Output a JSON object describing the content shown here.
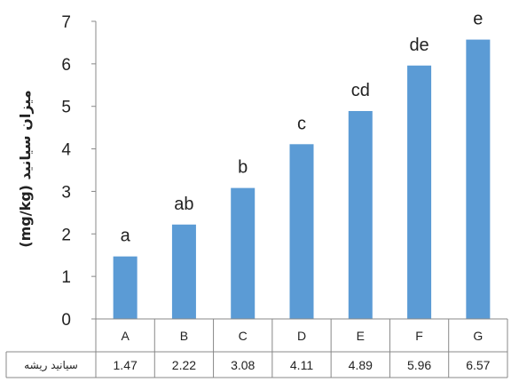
{
  "chart_data": {
    "type": "bar",
    "categories": [
      "A",
      "B",
      "C",
      "D",
      "E",
      "F",
      "G"
    ],
    "values": [
      1.47,
      2.22,
      3.08,
      4.11,
      4.89,
      5.96,
      6.57
    ],
    "significance_letters": [
      "a",
      "ab",
      "b",
      "c",
      "cd",
      "de",
      "e"
    ],
    "ylabel": "(mg/kg) میزان سیانید",
    "ylim": [
      0,
      7
    ],
    "yticks": [
      0,
      1,
      2,
      3,
      4,
      5,
      6,
      7
    ],
    "grid": false,
    "bar_color": "#5B9BD5",
    "data_table": {
      "row_label": "سیانید ریشه",
      "values": [
        "1.47",
        "2.22",
        "3.08",
        "4.11",
        "4.89",
        "5.96",
        "6.57"
      ]
    }
  }
}
